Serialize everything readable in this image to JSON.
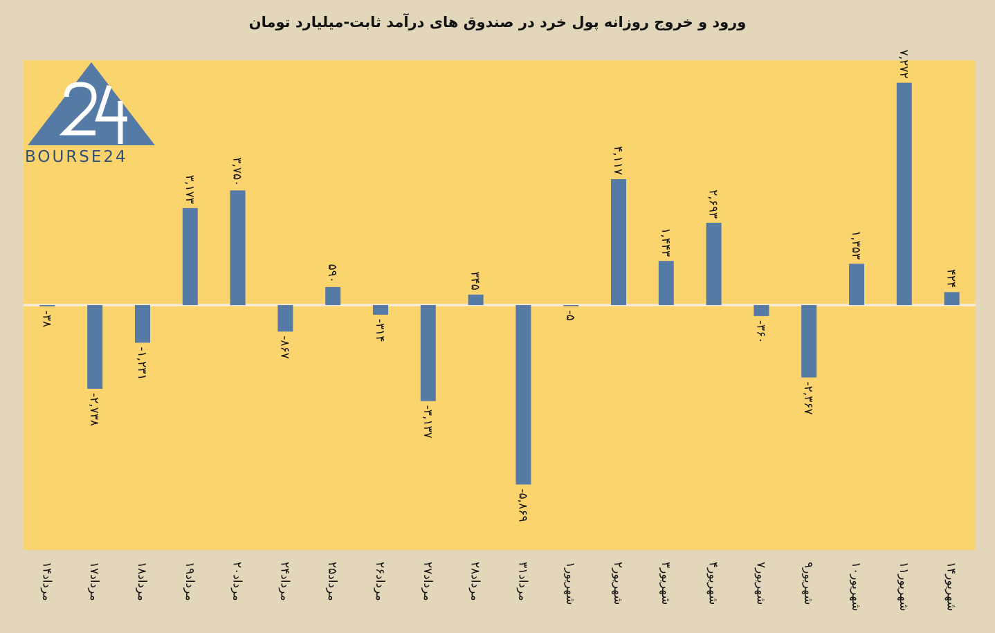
{
  "chart_data": {
    "type": "bar",
    "title": "ورود و خروج روزانه پول خرد در صندوق های درآمد ثابت-میلیارد تومان",
    "categories": [
      "۱۴مرداد",
      "۱۷مرداد",
      "۱۸مرداد",
      "۱۹مرداد",
      "۲۰مرداد",
      "۲۴مرداد",
      "۲۵مرداد",
      "۲۶مرداد",
      "۲۷مرداد",
      "۲۸مرداد",
      "۳۱مرداد",
      "۱شهریور",
      "۲شهریور",
      "۳شهریور",
      "۴شهریور",
      "۷شهریور",
      "۹شهریور",
      "۱۰شهریور",
      "۱۱شهریور",
      "۱۴شهریور"
    ],
    "values": [
      -38,
      -2738,
      -1231,
      3173,
      3750,
      -867,
      590,
      -314,
      -3137,
      345,
      -5869,
      -5,
      4117,
      1443,
      2693,
      -360,
      -2367,
      1353,
      7272,
      424
    ],
    "value_labels": [
      "-۳۸",
      "-۲,۷۳۸",
      "-۱,۲۳۱",
      "۳,۱۷۳",
      "۳,۷۵۰",
      "-۸۶۷",
      "۵۹۰",
      "-۳۱۴",
      "-۳,۱۳۷",
      "۳۴۵",
      "-۵,۸۶۹",
      "-۵",
      "۴,۱۱۷",
      "۱,۴۴۳",
      "۲,۶۹۳",
      "-۳۶۰",
      "-۲,۳۶۷",
      "۱,۳۵۳",
      "۷,۲۷۲",
      "۴۲۴"
    ],
    "ylim": [
      -8000,
      8000
    ],
    "grid": false,
    "colors": {
      "bar": "#547aa5",
      "plot_bg": "#fcd46e",
      "page_bg": "#e2d6bb"
    }
  },
  "logo": {
    "text": "BOURSE24"
  }
}
